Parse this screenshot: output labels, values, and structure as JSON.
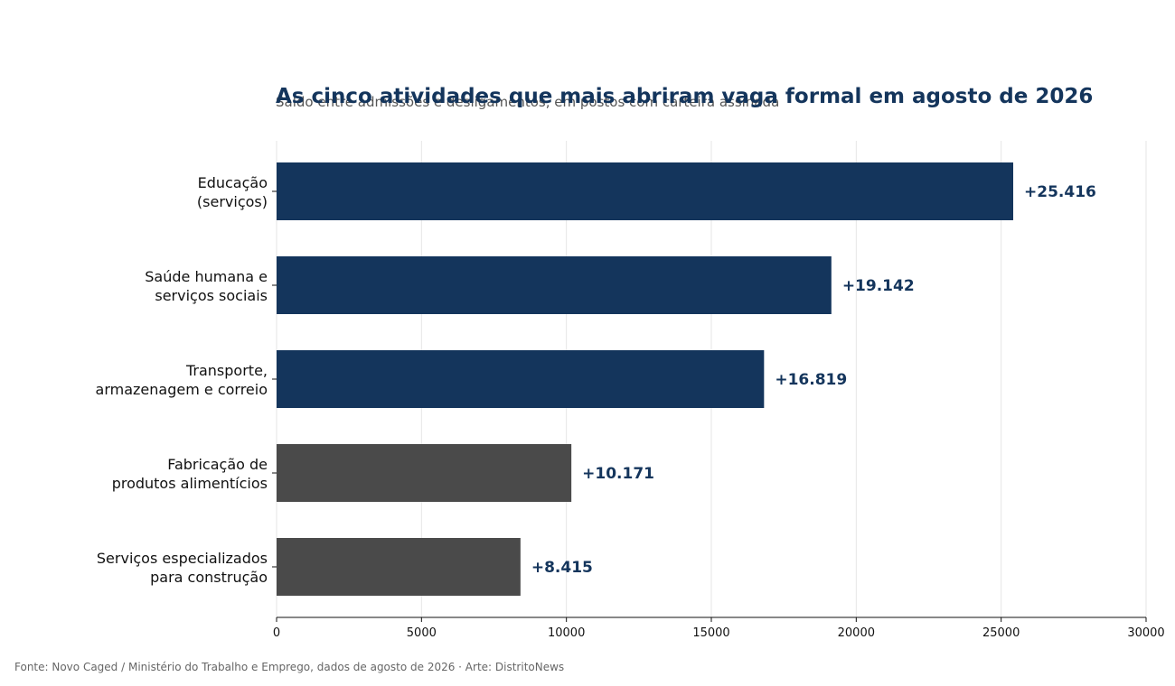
{
  "chart_data": {
    "type": "bar",
    "orientation": "horizontal",
    "title": "As cinco atividades que mais abriram vaga formal em agosto de 2026",
    "subtitle": "Saldo entre admissões e desligamentos, em postos com carteira assinada",
    "categories": [
      [
        "Educação",
        "(serviços)"
      ],
      [
        "Saúde humana e",
        "serviços sociais"
      ],
      [
        "Transporte,",
        "armazenagem e correio"
      ],
      [
        "Fabricação de",
        "produtos alimentícios"
      ],
      [
        "Serviços especializados",
        "para construção"
      ]
    ],
    "values": [
      25416,
      19142,
      16819,
      10171,
      8415
    ],
    "value_labels": [
      "+25.416",
      "+19.142",
      "+16.819",
      "+10.171",
      "+8.415"
    ],
    "bar_colors": [
      "#14355c",
      "#14355c",
      "#14355c",
      "#4a4a4a",
      "#4a4a4a"
    ],
    "xlim": [
      0,
      30000
    ],
    "xticks": [
      0,
      5000,
      10000,
      15000,
      20000,
      25000,
      30000
    ],
    "xtick_labels": [
      "0",
      "5000",
      "10000",
      "15000",
      "20000",
      "25000",
      "30000"
    ],
    "grid": "vertical",
    "xlabel": "",
    "ylabel": ""
  },
  "footer": "Fonte: Novo Caged / Ministério do Trabalho e Emprego, dados de agosto de 2026  ·  Arte: DistritoNews",
  "colors": {
    "highlight": "#14355c",
    "neutral": "#4a4a4a",
    "grid": "#e6e6e6",
    "title": "#14355c"
  }
}
